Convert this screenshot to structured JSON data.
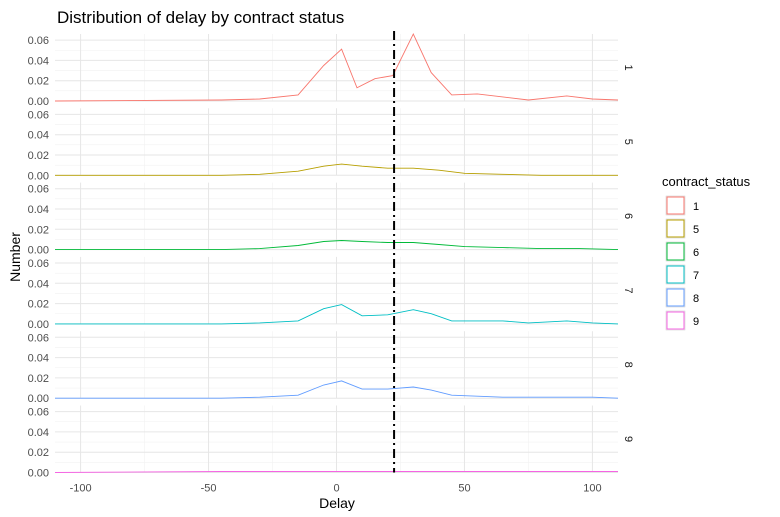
{
  "chart_data": {
    "type": "line",
    "title": "Distribution of delay by contract status",
    "xlabel": "Delay",
    "ylabel": "Number",
    "xlim": [
      -110,
      110
    ],
    "ylim": [
      0,
      0.066
    ],
    "x_ticks": [
      -100,
      -50,
      0,
      50,
      100
    ],
    "y_ticks": [
      0.0,
      0.02,
      0.04,
      0.06
    ],
    "y_tick_labels": [
      "0.00",
      "0.02",
      "0.04",
      "0.06"
    ],
    "vline": {
      "x": 22.5,
      "style": "dashed",
      "color": "#000000"
    },
    "grid": true,
    "facet_by": "contract_status",
    "facet_labels_position": "right",
    "legend": {
      "title": "contract_status",
      "position": "right"
    },
    "series": [
      {
        "name": "1",
        "color": "#F8766D",
        "x": [
          -110,
          -45,
          -30,
          -15,
          -5,
          2,
          8,
          15,
          22,
          30,
          37,
          45,
          55,
          65,
          75,
          90,
          100,
          110
        ],
        "y": [
          0.0,
          0.001,
          0.002,
          0.006,
          0.035,
          0.051,
          0.013,
          0.022,
          0.025,
          0.066,
          0.028,
          0.006,
          0.007,
          0.004,
          0.001,
          0.005,
          0.002,
          0.001
        ]
      },
      {
        "name": "5",
        "color": "#B79F00",
        "x": [
          -110,
          -45,
          -30,
          -15,
          -5,
          2,
          10,
          20,
          30,
          40,
          50,
          65,
          80,
          95,
          110
        ],
        "y": [
          0.0,
          0.0,
          0.001,
          0.004,
          0.009,
          0.011,
          0.009,
          0.007,
          0.007,
          0.005,
          0.002,
          0.001,
          0.0,
          0.0,
          0.0
        ]
      },
      {
        "name": "6",
        "color": "#00BA38",
        "x": [
          -110,
          -45,
          -30,
          -15,
          -5,
          2,
          10,
          20,
          30,
          40,
          50,
          65,
          80,
          95,
          110
        ],
        "y": [
          0.0,
          0.0,
          0.001,
          0.004,
          0.008,
          0.009,
          0.008,
          0.007,
          0.007,
          0.005,
          0.003,
          0.002,
          0.001,
          0.001,
          0.0
        ]
      },
      {
        "name": "7",
        "color": "#00BFC4",
        "x": [
          -110,
          -45,
          -30,
          -15,
          -5,
          2,
          10,
          20,
          30,
          37,
          45,
          55,
          65,
          75,
          90,
          100,
          110
        ],
        "y": [
          0.0,
          0.0,
          0.001,
          0.003,
          0.015,
          0.019,
          0.008,
          0.009,
          0.014,
          0.01,
          0.003,
          0.003,
          0.003,
          0.001,
          0.003,
          0.001,
          0.0
        ]
      },
      {
        "name": "8",
        "color": "#619CFF",
        "x": [
          -110,
          -45,
          -30,
          -15,
          -5,
          2,
          10,
          20,
          30,
          37,
          45,
          55,
          65,
          75,
          90,
          100,
          110
        ],
        "y": [
          0.0,
          0.0,
          0.001,
          0.003,
          0.013,
          0.017,
          0.009,
          0.009,
          0.011,
          0.008,
          0.003,
          0.002,
          0.001,
          0.001,
          0.001,
          0.001,
          0.0
        ]
      },
      {
        "name": "9",
        "color": "#F564E3",
        "x": [
          -110,
          -45,
          110
        ],
        "y": [
          0.0,
          0.001,
          0.001
        ]
      }
    ]
  }
}
